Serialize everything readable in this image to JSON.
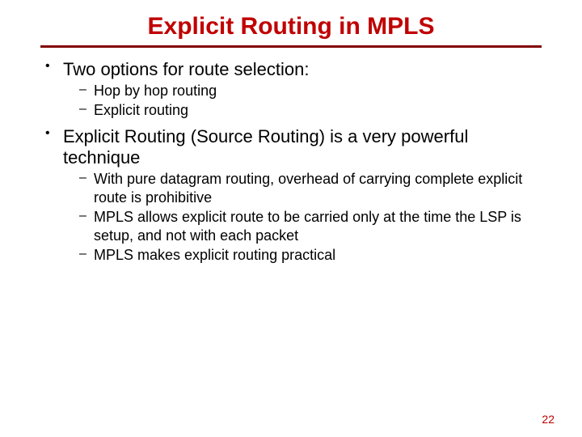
{
  "title": {
    "text": "Explicit Routing in MPLS",
    "color": "#c00000",
    "fontsize": 30
  },
  "rule_color": "#800000",
  "body_color": "#000000",
  "bullet1_fontsize": 22,
  "bullet2_fontsize": 18,
  "bullets": [
    {
      "text": "Two options for route selection:",
      "sub": [
        "Hop by hop routing",
        "Explicit routing"
      ]
    },
    {
      "text": "Explicit Routing (Source Routing) is a very powerful technique",
      "sub": [
        "With pure datagram routing, overhead of carrying complete explicit route is prohibitive",
        "MPLS allows explicit route to be carried only at the time the LSP is setup, and not with each packet",
        "MPLS makes explicit routing practical"
      ]
    }
  ],
  "page_number": {
    "text": "22",
    "color": "#c00000",
    "fontsize": 14
  }
}
